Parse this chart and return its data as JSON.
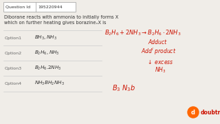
{
  "background_color": "#f0ede8",
  "question_id_label": "Question Id",
  "question_id_value": "195220944",
  "question_text_line1": "Diborane reacts with ammonia to initially forms X",
  "question_text_line2": "which on further heating gives borazineₓX is",
  "options": [
    {
      "label": "Option1",
      "text": "$BH_3, NH_3$"
    },
    {
      "label": "Option2",
      "text": "$B_2H_6, NH_3$"
    },
    {
      "label": "Option3",
      "text": "$B_2H_6.2NH_3$"
    },
    {
      "label": "Option4",
      "text": "$NH_3BH_2NH_3$"
    }
  ],
  "divider_color": "#cccccc",
  "text_color": "#333333",
  "red_color": "#cc1100",
  "header_border": "#aaaaaa",
  "doubtnut_color": "#cc1100"
}
